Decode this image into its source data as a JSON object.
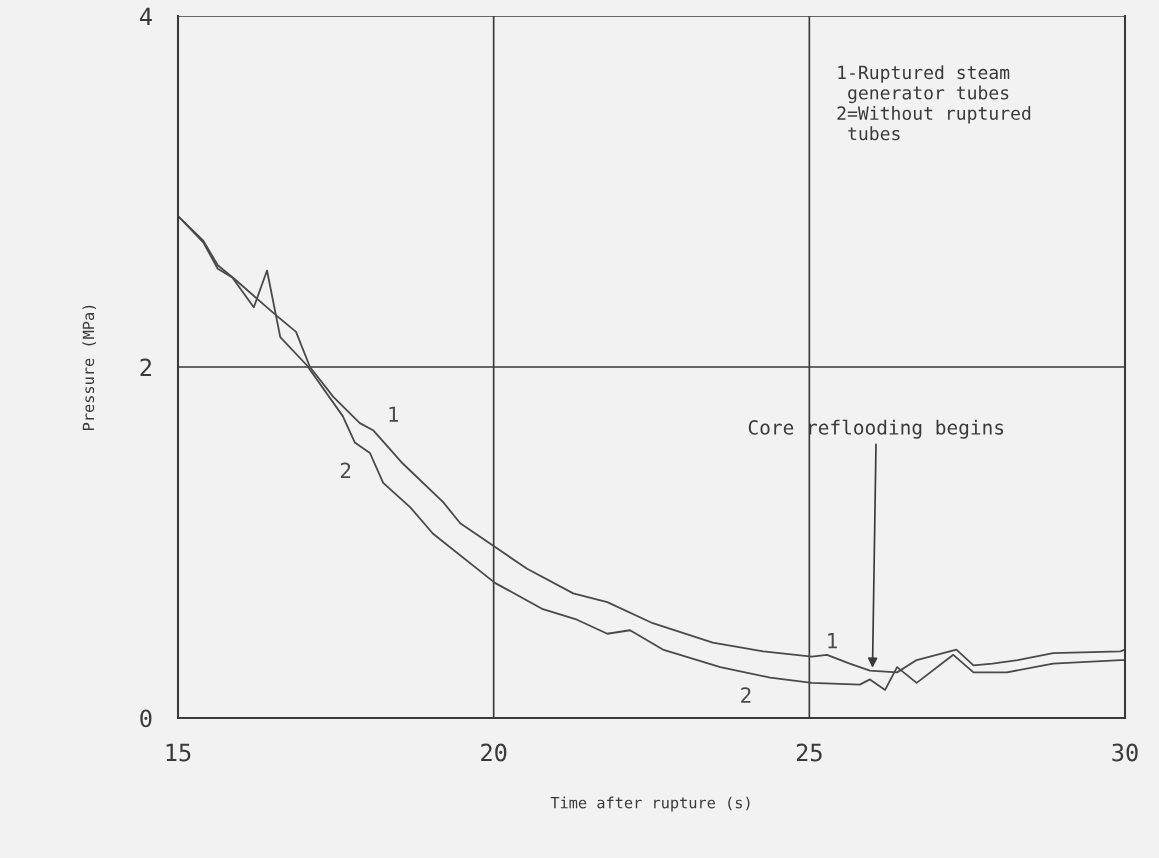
{
  "chart_data": {
    "type": "line",
    "xlabel": "Time after rupture (s)",
    "ylabel": "Pressure (MPa)",
    "xlim": [
      15,
      30
    ],
    "ylim": [
      0,
      4
    ],
    "xticks": [
      15,
      20,
      25,
      30
    ],
    "yticks": [
      0,
      2,
      4
    ],
    "grid": true,
    "legend": false,
    "marker": "none",
    "line_style": "solid",
    "series": [
      {
        "name": "1",
        "color": "#4a4a4a",
        "x": [
          15,
          15.4,
          15.63,
          15.9,
          16.25,
          16.57,
          16.87,
          17.09,
          17.46,
          17.88,
          18.09,
          18.56,
          19.2,
          19.47,
          20.0,
          20.53,
          21.26,
          21.8,
          22.52,
          23.47,
          24.27,
          25.04,
          25.28,
          25.64,
          25.96,
          26.39,
          26.7,
          27.33,
          27.6,
          27.9,
          28.3,
          28.86,
          29.93,
          30
        ],
        "values": [
          2.86,
          2.72,
          2.58,
          2.5,
          2.39,
          2.29,
          2.2,
          2.0,
          1.83,
          1.68,
          1.64,
          1.45,
          1.23,
          1.11,
          0.98,
          0.85,
          0.71,
          0.66,
          0.54,
          0.43,
          0.38,
          0.35,
          0.36,
          0.31,
          0.27,
          0.26,
          0.33,
          0.39,
          0.3,
          0.31,
          0.33,
          0.37,
          0.38,
          0.39
        ]
      },
      {
        "name": "2",
        "color": "#4a4a4a",
        "x": [
          15,
          15.4,
          15.63,
          15.86,
          16.2,
          16.41,
          16.62,
          17.04,
          17.61,
          17.8,
          18.04,
          18.25,
          18.68,
          19.04,
          20.02,
          20.78,
          21.32,
          21.8,
          22.16,
          22.68,
          23.59,
          24.38,
          25.04,
          25.8,
          25.96,
          26.2,
          26.39,
          26.7,
          27.28,
          27.6,
          28.13,
          28.86,
          29.93,
          30
        ],
        "values": [
          2.86,
          2.71,
          2.56,
          2.51,
          2.34,
          2.55,
          2.17,
          2.01,
          1.72,
          1.57,
          1.51,
          1.34,
          1.2,
          1.05,
          0.77,
          0.62,
          0.56,
          0.48,
          0.5,
          0.39,
          0.29,
          0.23,
          0.2,
          0.19,
          0.22,
          0.16,
          0.29,
          0.2,
          0.36,
          0.26,
          0.26,
          0.31,
          0.33,
          0.33
        ]
      }
    ],
    "annotations": [
      "1-Ruptured steam\n generator tubes\n2=Without ruptured\n tubes",
      {
        "text": "Core reflooding begins",
        "x": 26.0,
        "y": 0.27
      }
    ]
  }
}
